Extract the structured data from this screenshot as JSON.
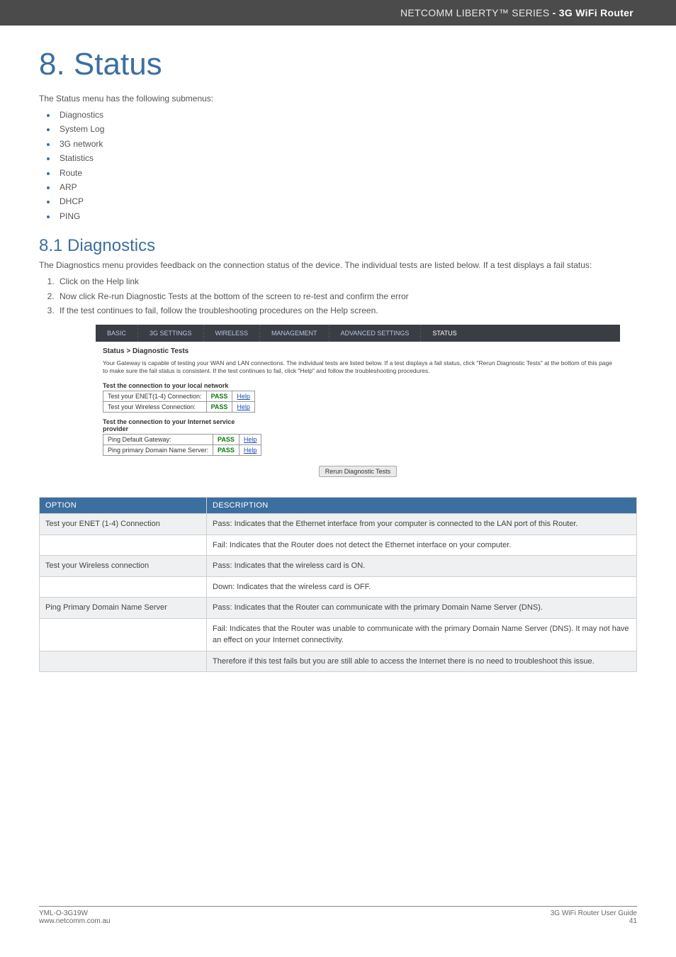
{
  "header": {
    "brand": "NETCOMM LIBERTY™ SERIES",
    "product": " - 3G WiFi Router"
  },
  "chapter_title": "8. Status",
  "intro_text": "The Status menu has the following submenus:",
  "submenu_bullets": [
    "Diagnostics",
    "System Log",
    "3G network",
    "Statistics",
    "Route",
    "ARP",
    "DHCP",
    "PING"
  ],
  "section": {
    "title": "8.1 Diagnostics",
    "intro": "The Diagnostics menu provides feedback on the connection status of the device. The individual tests are listed below. If a test displays a fail status:",
    "steps": [
      "Click on the Help link",
      "Now click Re-run Diagnostic Tests at the bottom of the screen to re-test and confirm the error",
      "If the test continues to fail, follow the troubleshooting procedures on the Help screen."
    ]
  },
  "screenshot": {
    "tabs": [
      "BASIC",
      "3G SETTINGS",
      "WIRELESS",
      "MANAGEMENT",
      "ADVANCED SETTINGS",
      "STATUS"
    ],
    "active_tab_index": 5,
    "breadcrumb": "Status > Diagnostic Tests",
    "description": "Your Gateway is capable of testing your WAN and LAN connections. The individual tests are listed below. If a test displays a fail status, click \"Rerun Diagnostic Tests\" at the bottom of this page to make sure the fail status is consistent. If the test continues to fail, click \"Help\" and follow the troubleshooting procedures.",
    "group1": {
      "caption": "Test the connection to your local network",
      "rows": [
        {
          "label": "Test your ENET(1-4) Connection:",
          "status": "PASS",
          "link": "Help"
        },
        {
          "label": "Test your Wireless Connection:",
          "status": "PASS",
          "link": "Help"
        }
      ]
    },
    "group2": {
      "caption": "Test the connection to your Internet service provider",
      "rows": [
        {
          "label": "Ping Default Gateway:",
          "status": "PASS",
          "link": "Help"
        },
        {
          "label": "Ping primary Domain Name Server:",
          "status": "PASS",
          "link": "Help"
        }
      ]
    },
    "rerun_button": "Rerun Diagnostic Tests"
  },
  "opt_table": {
    "headers": [
      "OPTION",
      "DESCRIPTION"
    ],
    "rows": [
      {
        "opt": "Test your ENET (1-4) Connection",
        "desc": "Pass: Indicates that the Ethernet interface from your computer is connected to the LAN port of this Router."
      },
      {
        "opt": "",
        "desc": "Fail: Indicates  that the Router does not detect the Ethernet interface on your computer."
      },
      {
        "opt": "Test your Wireless connection",
        "desc": "Pass: Indicates that the wireless card is ON."
      },
      {
        "opt": "",
        "desc": "Down: Indicates that the wireless card is OFF."
      },
      {
        "opt": "Ping Primary Domain Name Server",
        "desc": "Pass: Indicates that the Router can communicate with the primary Domain Name Server (DNS)."
      },
      {
        "opt": "",
        "desc": "Fail: Indicates that the Router was unable to communicate with the primary Domain Name Server (DNS). It may not have an effect on your Internet connectivity."
      },
      {
        "opt": "",
        "desc": "Therefore if this test fails but you are still able to access the Internet there is no need to troubleshoot this issue."
      }
    ]
  },
  "footer": {
    "left1": "YML-O-3G19W",
    "left2": "www.netcomm.com.au",
    "right1": "3G WiFi Router User Guide",
    "right2": "41"
  }
}
